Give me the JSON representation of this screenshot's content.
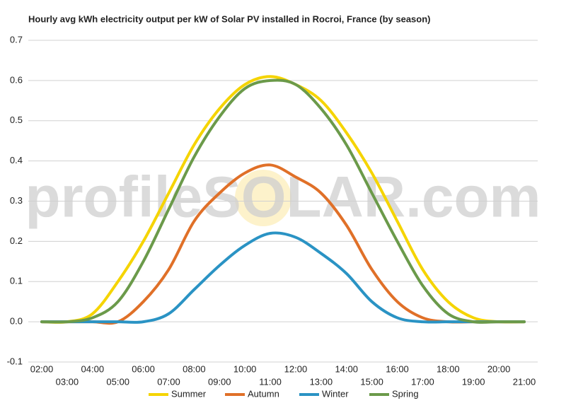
{
  "chart_data": {
    "type": "line",
    "title": "Hourly avg kWh electricity output per kW of Solar PV installed in Rocroi, France (by season)",
    "watermark": "profileSOLAR.com",
    "categories": [
      "02:00",
      "03:00",
      "04:00",
      "05:00",
      "06:00",
      "07:00",
      "08:00",
      "09:00",
      "10:00",
      "11:00",
      "12:00",
      "13:00",
      "14:00",
      "15:00",
      "16:00",
      "17:00",
      "18:00",
      "19:00",
      "20:00",
      "21:00"
    ],
    "series": [
      {
        "name": "Summer",
        "color": "#f5d400",
        "values": [
          0,
          0,
          0.02,
          0.1,
          0.2,
          0.32,
          0.44,
          0.53,
          0.59,
          0.61,
          0.59,
          0.55,
          0.47,
          0.37,
          0.25,
          0.13,
          0.05,
          0.01,
          0,
          0
        ]
      },
      {
        "name": "Autumn",
        "color": "#e07028",
        "values": [
          0,
          0,
          0,
          0,
          0.05,
          0.13,
          0.25,
          0.32,
          0.37,
          0.39,
          0.36,
          0.32,
          0.24,
          0.13,
          0.05,
          0.01,
          0,
          0,
          0,
          0
        ]
      },
      {
        "name": "Winter",
        "color": "#2a93c4",
        "values": [
          0,
          0,
          0,
          0,
          0,
          0.02,
          0.08,
          0.14,
          0.19,
          0.22,
          0.21,
          0.17,
          0.12,
          0.05,
          0.01,
          0,
          0,
          0,
          0,
          0
        ]
      },
      {
        "name": "Spring",
        "color": "#6b9a4a",
        "values": [
          0,
          0,
          0.01,
          0.05,
          0.15,
          0.28,
          0.41,
          0.51,
          0.58,
          0.6,
          0.59,
          0.53,
          0.44,
          0.32,
          0.2,
          0.09,
          0.02,
          0,
          0,
          0
        ]
      }
    ],
    "ylim": [
      -0.1,
      0.7
    ],
    "yticks": [
      -0.1,
      {
        "value": 0,
        "label": "0.0"
      },
      0.1,
      0.2,
      0.3,
      0.4,
      0.5,
      0.6,
      0.7
    ],
    "grid": true
  }
}
